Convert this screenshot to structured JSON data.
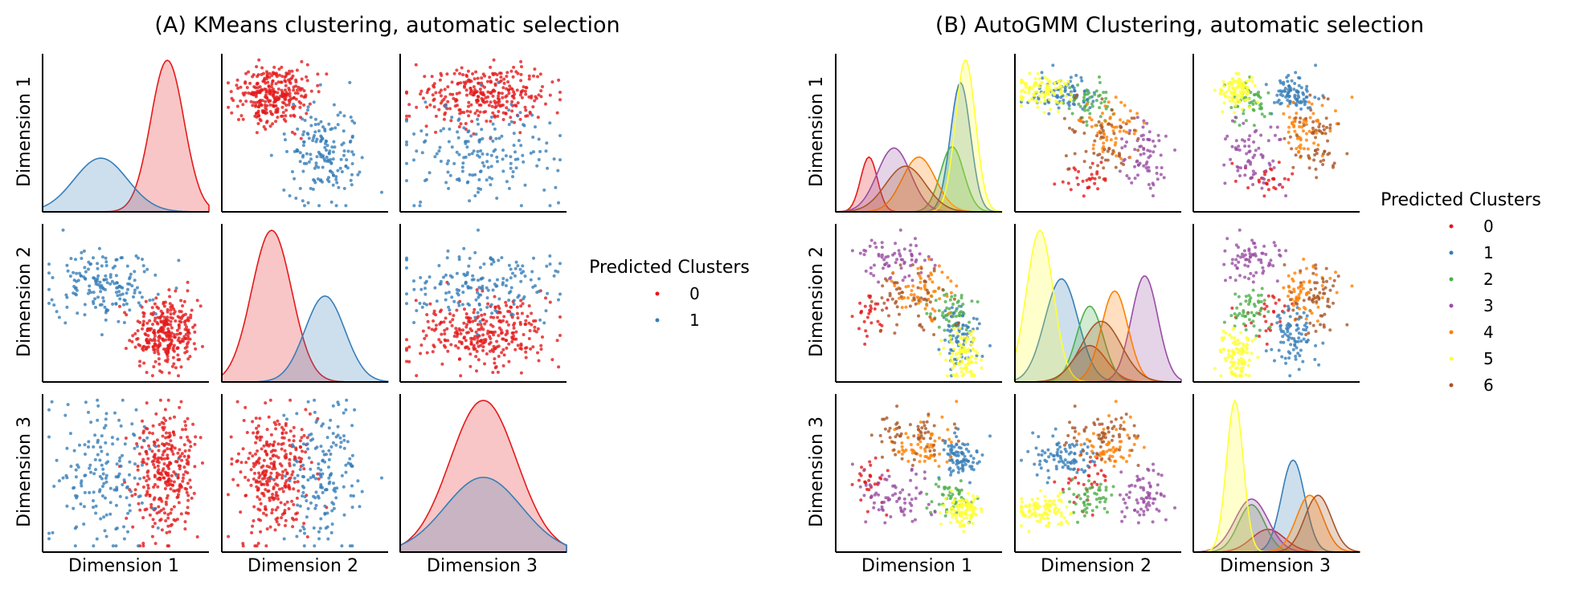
{
  "legend_title": "Predicted Clusters",
  "colors": {
    "0": "#e41a1c",
    "1": "#377eb8",
    "2": "#4daf4a",
    "3": "#984ea3",
    "4": "#ff7f00",
    "5": "#ffff33",
    "6": "#a65628"
  },
  "chart_data": [
    {
      "type": "scatter",
      "title": "(A) KMeans clustering, automatic selection",
      "variables": [
        "Dimension 1",
        "Dimension 2",
        "Dimension 3"
      ],
      "legend_title": "Predicted Clusters",
      "legend_placement": "right",
      "grid": false,
      "clusters": [
        {
          "name": "0",
          "color": "#e41a1c",
          "n": 300,
          "mean": [
            0.75,
            0.3,
            0.5
          ],
          "sd": [
            0.1,
            0.12,
            0.2
          ]
        },
        {
          "name": "1",
          "color": "#377eb8",
          "n": 170,
          "mean": [
            0.35,
            0.62,
            0.5
          ],
          "sd": [
            0.16,
            0.12,
            0.23
          ]
        }
      ],
      "kde_peaks": [
        {
          "diag": "Dimension 1",
          "cluster": "0",
          "peak_x": 0.72
        },
        {
          "diag": "Dimension 1",
          "cluster": "1",
          "peak_x": 0.45
        },
        {
          "diag": "Dimension 2",
          "cluster": "0",
          "peak_x": 0.25
        },
        {
          "diag": "Dimension 2",
          "cluster": "1",
          "peak_x": 0.6
        },
        {
          "diag": "Dimension 3",
          "cluster": "0",
          "peak_x": 0.42
        },
        {
          "diag": "Dimension 3",
          "cluster": "1",
          "peak_x": 0.48
        }
      ]
    },
    {
      "type": "scatter",
      "title": "(B) AutoGMM Clustering, automatic selection",
      "variables": [
        "Dimension 1",
        "Dimension 2",
        "Dimension 3"
      ],
      "legend_title": "Predicted Clusters",
      "legend_placement": "right",
      "grid": false,
      "clusters": [
        {
          "name": "0",
          "color": "#e41a1c",
          "n": 30,
          "mean": [
            0.2,
            0.45,
            0.45
          ],
          "sd": [
            0.05,
            0.1,
            0.1
          ]
        },
        {
          "name": "1",
          "color": "#377eb8",
          "n": 85,
          "mean": [
            0.75,
            0.28,
            0.6
          ],
          "sd": [
            0.06,
            0.1,
            0.07
          ]
        },
        {
          "name": "2",
          "color": "#4daf4a",
          "n": 50,
          "mean": [
            0.7,
            0.45,
            0.35
          ],
          "sd": [
            0.07,
            0.08,
            0.08
          ]
        },
        {
          "name": "3",
          "color": "#984ea3",
          "n": 70,
          "mean": [
            0.35,
            0.78,
            0.35
          ],
          "sd": [
            0.1,
            0.08,
            0.1
          ]
        },
        {
          "name": "4",
          "color": "#ff7f00",
          "n": 60,
          "mean": [
            0.5,
            0.6,
            0.7
          ],
          "sd": [
            0.1,
            0.08,
            0.08
          ]
        },
        {
          "name": "5",
          "color": "#ffff33",
          "n": 100,
          "mean": [
            0.78,
            0.15,
            0.25
          ],
          "sd": [
            0.06,
            0.08,
            0.05
          ]
        },
        {
          "name": "6",
          "color": "#a65628",
          "n": 60,
          "mean": [
            0.42,
            0.52,
            0.75
          ],
          "sd": [
            0.12,
            0.12,
            0.08
          ]
        }
      ],
      "kde_peaks": [
        {
          "diag": "Dimension 1",
          "cluster": "5",
          "peak_x": 0.78
        },
        {
          "diag": "Dimension 1",
          "cluster": "1",
          "peak_x": 0.72
        },
        {
          "diag": "Dimension 2",
          "cluster": "5",
          "peak_x": 0.2
        },
        {
          "diag": "Dimension 2",
          "cluster": "1",
          "peak_x": 0.28
        },
        {
          "diag": "Dimension 3",
          "cluster": "5",
          "peak_x": 0.3
        },
        {
          "diag": "Dimension 3",
          "cluster": "1",
          "peak_x": 0.55
        }
      ]
    }
  ]
}
